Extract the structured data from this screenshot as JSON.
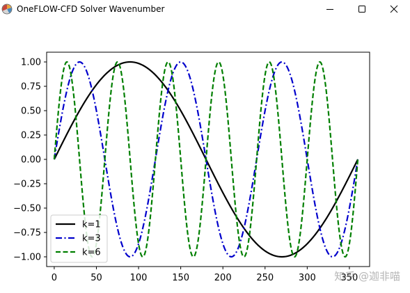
{
  "window": {
    "title": "OneFLOW-CFD Solver Wavenumber",
    "icons": {
      "app": "matplotlib-figure-icon",
      "minimize": "minimize-icon",
      "maximize": "maximize-icon",
      "close": "close-icon"
    }
  },
  "watermark": "知乎 @迦非喵",
  "chart_data": {
    "type": "line",
    "title": "",
    "xlabel": "",
    "ylabel": "",
    "xlim": [
      -9,
      374
    ],
    "ylim": [
      -1.1,
      1.1
    ],
    "xticks": [
      0,
      50,
      100,
      150,
      200,
      250,
      300,
      350
    ],
    "yticks": [
      -1.0,
      -0.75,
      -0.5,
      -0.25,
      0.0,
      0.25,
      0.5,
      0.75,
      1.0
    ],
    "ytick_labels": [
      "−1.00",
      "−0.75",
      "−0.50",
      "−0.25",
      "0.00",
      "0.25",
      "0.50",
      "0.75",
      "1.00"
    ],
    "grid": false,
    "legend_position": "lower-left",
    "x": [
      0,
      15,
      30,
      45,
      60,
      75,
      90,
      105,
      120,
      135,
      150,
      165,
      180,
      195,
      210,
      225,
      240,
      255,
      270,
      285,
      300,
      315,
      330,
      345,
      360
    ],
    "series": [
      {
        "name": "k=1",
        "color": "#000000",
        "dash": "solid",
        "values": [
          0.0,
          0.2588,
          0.5,
          0.7071,
          0.866,
          0.9659,
          1.0,
          0.9659,
          0.866,
          0.7071,
          0.5,
          0.2588,
          0.0,
          -0.2588,
          -0.5,
          -0.7071,
          -0.866,
          -0.9659,
          -1.0,
          -0.9659,
          -0.866,
          -0.7071,
          -0.5,
          -0.2588,
          0.0
        ]
      },
      {
        "name": "k=3",
        "color": "#0000cc",
        "dash": "dashdot",
        "values": [
          0.0,
          0.7071,
          1.0,
          0.7071,
          0.0,
          -0.7071,
          -1.0,
          -0.7071,
          0.0,
          0.7071,
          1.0,
          0.7071,
          0.0,
          -0.7071,
          -1.0,
          -0.7071,
          0.0,
          0.7071,
          1.0,
          0.7071,
          0.0,
          -0.7071,
          -1.0,
          -0.7071,
          0.0
        ]
      },
      {
        "name": "k=6",
        "color": "#007f00",
        "dash": "dashed",
        "values": [
          0.0,
          1.0,
          0.0,
          -1.0,
          0.0,
          1.0,
          0.0,
          -1.0,
          0.0,
          1.0,
          0.0,
          -1.0,
          0.0,
          1.0,
          0.0,
          -1.0,
          0.0,
          1.0,
          0.0,
          -1.0,
          0.0,
          1.0,
          0.0,
          -1.0,
          0.0
        ]
      }
    ]
  }
}
